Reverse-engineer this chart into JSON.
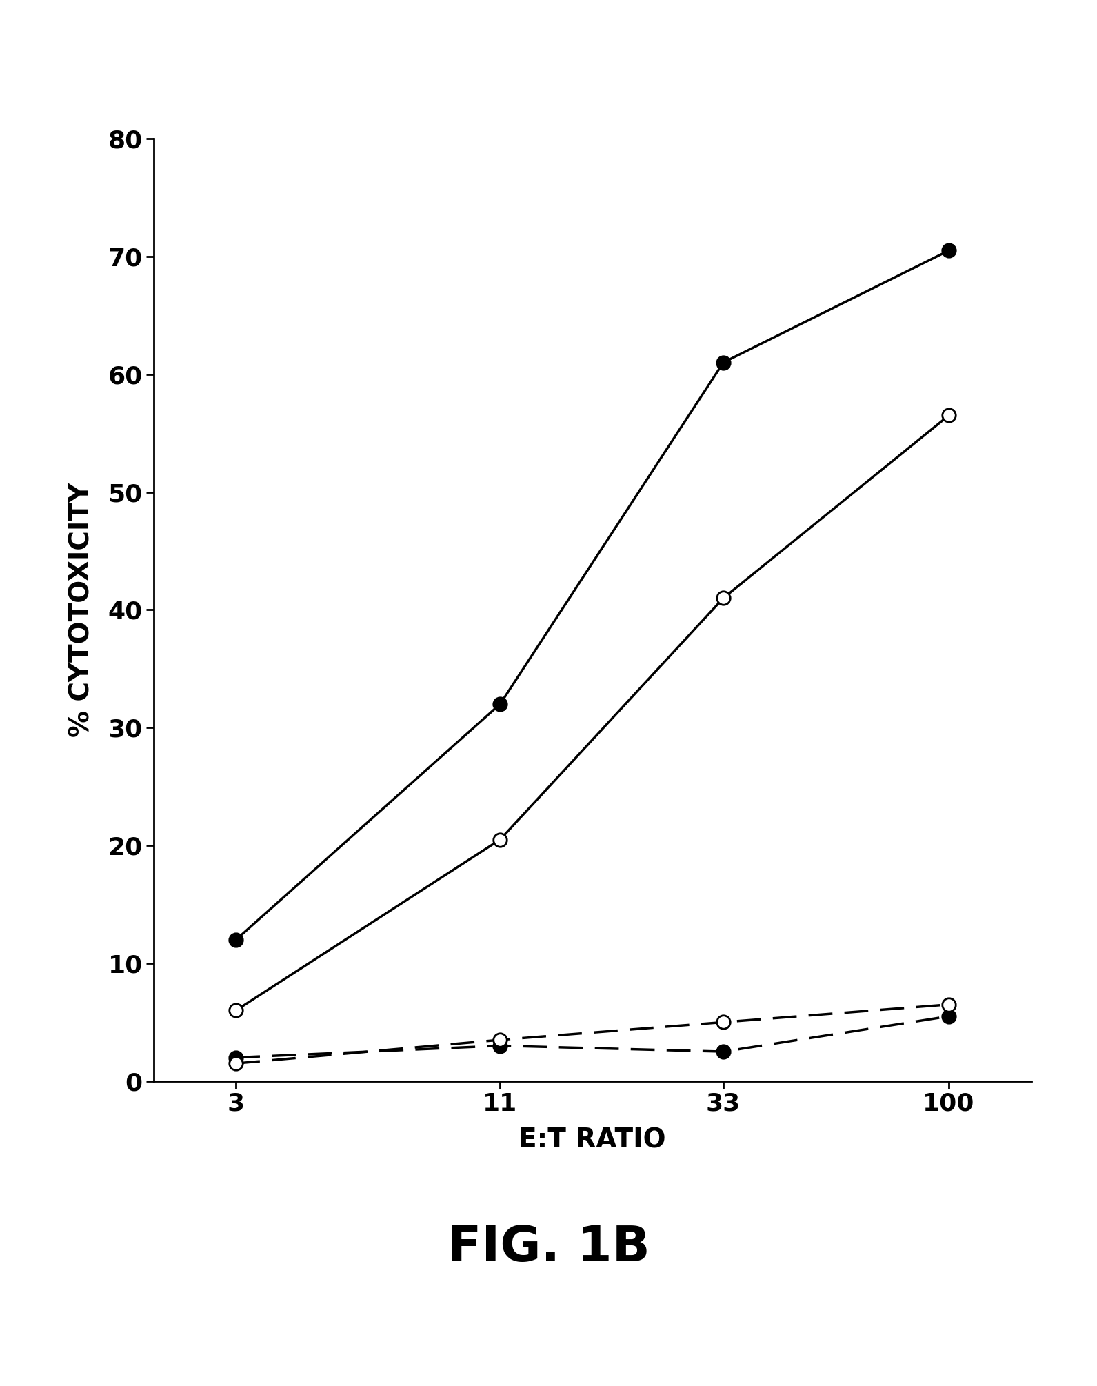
{
  "x_values": [
    3,
    11,
    33,
    100
  ],
  "x_labels": [
    "3",
    "11",
    "33",
    "100"
  ],
  "series": [
    {
      "label": "solid_filled",
      "y": [
        12,
        32,
        61,
        70.5
      ],
      "linestyle": "solid",
      "marker": "o",
      "markerfacecolor": "black",
      "markeredgecolor": "black",
      "linecolor": "black",
      "linewidth": 2.5,
      "markersize": 14
    },
    {
      "label": "solid_open",
      "y": [
        6,
        20.5,
        41,
        56.5
      ],
      "linestyle": "solid",
      "marker": "o",
      "markerfacecolor": "white",
      "markeredgecolor": "black",
      "linecolor": "black",
      "linewidth": 2.5,
      "markersize": 14
    },
    {
      "label": "dashed_filled",
      "y": [
        2,
        3,
        2.5,
        5.5
      ],
      "linestyle": "dashed",
      "marker": "o",
      "markerfacecolor": "black",
      "markeredgecolor": "black",
      "linecolor": "black",
      "linewidth": 2.5,
      "markersize": 14
    },
    {
      "label": "dashed_open",
      "y": [
        1.5,
        3.5,
        5,
        6.5
      ],
      "linestyle": "dashed",
      "marker": "o",
      "markerfacecolor": "white",
      "markeredgecolor": "black",
      "linecolor": "black",
      "linewidth": 2.5,
      "markersize": 14
    }
  ],
  "xlabel": "E:T RATIO",
  "ylabel": "% CYTOTOXICITY",
  "ylim": [
    0,
    80
  ],
  "yticks": [
    0,
    10,
    20,
    30,
    40,
    50,
    60,
    70,
    80
  ],
  "title": "FIG. 1B",
  "title_fontsize": 52,
  "axis_label_fontsize": 28,
  "tick_fontsize": 26,
  "background_color": "#ffffff",
  "dashes_on": 10,
  "dashes_off": 5,
  "figwidth": 15.91,
  "figheight": 20.1,
  "dpi": 100
}
